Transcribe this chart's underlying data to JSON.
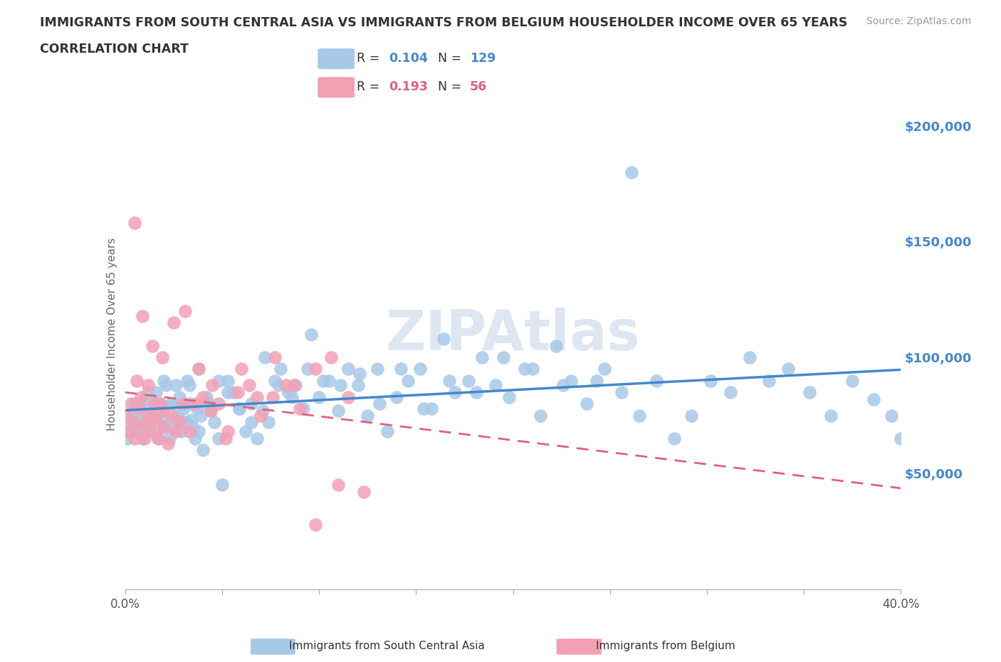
{
  "title_line1": "IMMIGRANTS FROM SOUTH CENTRAL ASIA VS IMMIGRANTS FROM BELGIUM HOUSEHOLDER INCOME OVER 65 YEARS",
  "title_line2": "CORRELATION CHART",
  "source_text": "Source: ZipAtlas.com",
  "ylabel": "Householder Income Over 65 years",
  "x_min": 0.0,
  "x_max": 0.4,
  "y_min": 0,
  "y_max": 220000,
  "yticks": [
    0,
    50000,
    100000,
    150000,
    200000
  ],
  "ytick_labels": [
    "",
    "$50,000",
    "$100,000",
    "$150,000",
    "$200,000"
  ],
  "xticks": [
    0.0,
    0.05,
    0.1,
    0.15,
    0.2,
    0.25,
    0.3,
    0.35,
    0.4
  ],
  "blue_color": "#a8c8e8",
  "pink_color": "#f4a0b4",
  "blue_line_color": "#4488cc",
  "pink_line_color": "#e06080",
  "watermark": "ZIPAtlas",
  "watermark_color": "#c8d8e8",
  "background_color": "#ffffff",
  "grid_color": "#cccccc",
  "title_color": "#333333",
  "axis_label_color": "#4488cc",
  "R_blue": "0.104",
  "N_blue": "129",
  "R_pink": "0.193",
  "N_pink": "56",
  "label_blue": "Immigrants from South Central Asia",
  "label_pink": "Immigrants from Belgium",
  "blue_scatter_x": [
    0.001,
    0.002,
    0.003,
    0.004,
    0.005,
    0.006,
    0.007,
    0.008,
    0.009,
    0.01,
    0.011,
    0.012,
    0.013,
    0.014,
    0.015,
    0.016,
    0.017,
    0.018,
    0.019,
    0.02,
    0.021,
    0.022,
    0.023,
    0.024,
    0.025,
    0.026,
    0.027,
    0.028,
    0.029,
    0.03,
    0.031,
    0.032,
    0.033,
    0.034,
    0.035,
    0.036,
    0.037,
    0.038,
    0.039,
    0.04,
    0.042,
    0.044,
    0.046,
    0.048,
    0.05,
    0.053,
    0.056,
    0.059,
    0.062,
    0.065,
    0.068,
    0.071,
    0.074,
    0.077,
    0.08,
    0.084,
    0.088,
    0.092,
    0.096,
    0.1,
    0.105,
    0.11,
    0.115,
    0.12,
    0.125,
    0.13,
    0.135,
    0.14,
    0.146,
    0.152,
    0.158,
    0.164,
    0.17,
    0.177,
    0.184,
    0.191,
    0.198,
    0.206,
    0.214,
    0.222,
    0.23,
    0.238,
    0.247,
    0.256,
    0.265,
    0.274,
    0.283,
    0.292,
    0.302,
    0.312,
    0.322,
    0.332,
    0.342,
    0.353,
    0.364,
    0.375,
    0.386,
    0.395,
    0.4,
    0.01,
    0.013,
    0.016,
    0.02,
    0.024,
    0.028,
    0.033,
    0.038,
    0.043,
    0.048,
    0.053,
    0.059,
    0.065,
    0.072,
    0.079,
    0.086,
    0.094,
    0.102,
    0.111,
    0.121,
    0.131,
    0.142,
    0.154,
    0.167,
    0.181,
    0.195,
    0.21,
    0.226,
    0.243,
    0.261
  ],
  "blue_scatter_y": [
    65000,
    72000,
    68000,
    75000,
    80000,
    68000,
    73000,
    78000,
    65000,
    82000,
    70000,
    85000,
    68000,
    73000,
    80000,
    75000,
    65000,
    80000,
    77000,
    70000,
    88000,
    73000,
    65000,
    80000,
    70000,
    88000,
    75000,
    83000,
    68000,
    78000,
    72000,
    90000,
    80000,
    73000,
    70000,
    65000,
    78000,
    68000,
    75000,
    60000,
    83000,
    77000,
    72000,
    65000,
    45000,
    90000,
    85000,
    78000,
    68000,
    80000,
    65000,
    77000,
    72000,
    90000,
    95000,
    85000,
    88000,
    78000,
    110000,
    83000,
    90000,
    77000,
    95000,
    88000,
    75000,
    95000,
    68000,
    83000,
    90000,
    95000,
    78000,
    108000,
    85000,
    90000,
    100000,
    88000,
    83000,
    95000,
    75000,
    105000,
    90000,
    80000,
    95000,
    85000,
    75000,
    90000,
    65000,
    75000,
    90000,
    85000,
    100000,
    90000,
    95000,
    85000,
    75000,
    90000,
    82000,
    75000,
    65000,
    72000,
    78000,
    85000,
    90000,
    80000,
    73000,
    88000,
    95000,
    80000,
    90000,
    85000,
    78000,
    72000,
    100000,
    88000,
    83000,
    95000,
    90000,
    88000,
    93000,
    80000,
    95000,
    78000,
    90000,
    85000,
    100000,
    95000,
    88000,
    90000,
    180000
  ],
  "pink_scatter_x": [
    0.001,
    0.002,
    0.003,
    0.004,
    0.005,
    0.006,
    0.007,
    0.008,
    0.009,
    0.01,
    0.011,
    0.012,
    0.013,
    0.014,
    0.015,
    0.016,
    0.017,
    0.018,
    0.019,
    0.02,
    0.022,
    0.024,
    0.026,
    0.028,
    0.03,
    0.033,
    0.036,
    0.04,
    0.044,
    0.048,
    0.053,
    0.058,
    0.064,
    0.07,
    0.076,
    0.083,
    0.09,
    0.098,
    0.106,
    0.115,
    0.005,
    0.009,
    0.014,
    0.019,
    0.025,
    0.031,
    0.038,
    0.045,
    0.052,
    0.06,
    0.068,
    0.077,
    0.087,
    0.098,
    0.11,
    0.123
  ],
  "pink_scatter_y": [
    75000,
    68000,
    80000,
    72000,
    65000,
    90000,
    78000,
    83000,
    70000,
    65000,
    73000,
    88000,
    75000,
    68000,
    80000,
    73000,
    65000,
    80000,
    77000,
    70000,
    63000,
    75000,
    68000,
    72000,
    80000,
    68000,
    80000,
    83000,
    77000,
    80000,
    68000,
    85000,
    88000,
    75000,
    83000,
    88000,
    78000,
    95000,
    100000,
    83000,
    158000,
    118000,
    105000,
    100000,
    115000,
    120000,
    95000,
    88000,
    65000,
    95000,
    83000,
    100000,
    88000,
    28000,
    45000,
    42000
  ]
}
